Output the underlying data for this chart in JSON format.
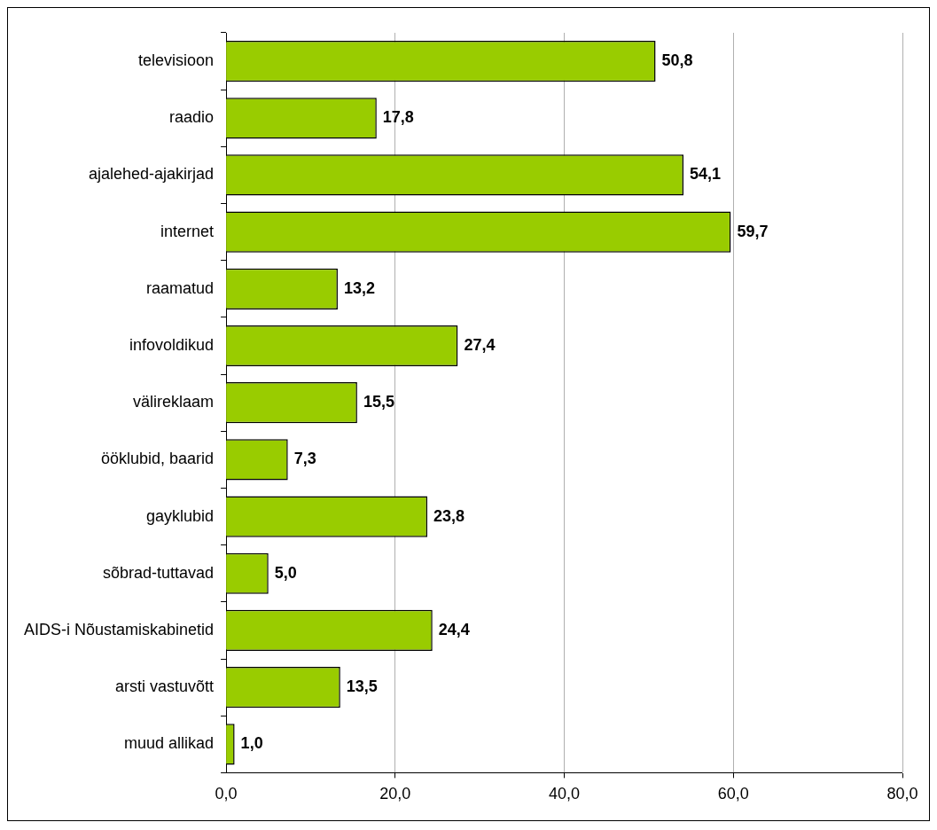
{
  "chart_data": {
    "type": "bar",
    "orientation": "horizontal",
    "categories": [
      "televisioon",
      "raadio",
      "ajalehed-ajakirjad",
      "internet",
      "raamatud",
      "infovoldikud",
      "välireklaam",
      "ööklubid, baarid",
      "gayklubid",
      "sõbrad-tuttavad",
      "AIDS-i Nõustamiskabinetid",
      "arsti vastuvõtt",
      "muud allikad"
    ],
    "values": [
      50.8,
      17.8,
      54.1,
      59.7,
      13.2,
      27.4,
      15.5,
      7.3,
      23.8,
      5.0,
      24.4,
      13.5,
      1.0
    ],
    "value_labels": [
      "50,8",
      "17,8",
      "54,1",
      "59,7",
      "13,2",
      "27,4",
      "15,5",
      "7,3",
      "23,8",
      "5,0",
      "24,4",
      "13,5",
      "1,0"
    ],
    "color": "#99cc00",
    "xlim": [
      0,
      80
    ],
    "xticks": [
      {
        "value": 0,
        "label": "0,0"
      },
      {
        "value": 20,
        "label": "20,0"
      },
      {
        "value": 40,
        "label": "40,0"
      },
      {
        "value": 60,
        "label": "60,0"
      },
      {
        "value": 80,
        "label": "80,0"
      }
    ],
    "grid": "x",
    "legend": false
  }
}
